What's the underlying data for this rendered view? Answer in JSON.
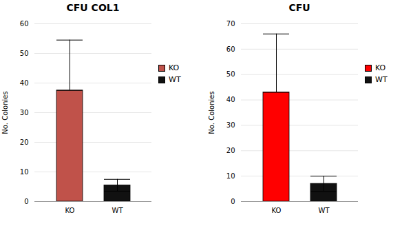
{
  "chart_data": [
    {
      "type": "bar",
      "title": "CFU COL1",
      "categories": [
        "KO",
        "WT"
      ],
      "values": [
        37.5,
        5.5
      ],
      "errors_up": [
        17.0,
        2.0
      ],
      "errors_down": [
        0.0,
        2.0
      ],
      "colors": [
        "#c0524a",
        "#111111"
      ],
      "ylim": [
        0,
        60
      ],
      "yticks": [
        0,
        10,
        20,
        30,
        40,
        50,
        60
      ],
      "ylabel": "No. Colonies",
      "grid": true,
      "legend": "right"
    },
    {
      "type": "bar",
      "title": "CFU",
      "categories": [
        "KO",
        "WT"
      ],
      "values": [
        43.0,
        7.0
      ],
      "errors_up": [
        23.0,
        3.0
      ],
      "errors_down": [
        0.0,
        3.0
      ],
      "colors": [
        "#ff0000",
        "#111111"
      ],
      "ylim": [
        0,
        70
      ],
      "yticks": [
        0,
        10,
        20,
        30,
        40,
        50,
        60,
        70
      ],
      "ylabel": "No. Colonies",
      "grid": true,
      "legend": "right"
    }
  ]
}
